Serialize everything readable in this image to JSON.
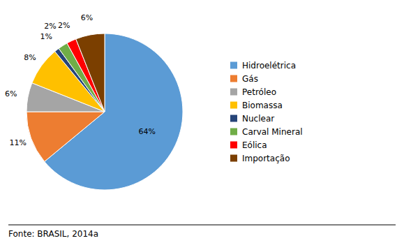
{
  "chart_data": {
    "type": "pie",
    "categories": [
      "Hidroelétrica",
      "Gás",
      "Petróleo",
      "Biomassa",
      "Nuclear",
      "Carval Mineral",
      "Eólica",
      "Importação"
    ],
    "values": [
      64,
      11,
      6,
      8,
      1,
      2,
      2,
      6
    ],
    "value_labels": [
      "64%",
      "11%",
      "6%",
      "8%",
      "1%",
      "2%",
      "2%",
      "6%"
    ],
    "colors": [
      "#5B9BD5",
      "#ED7D31",
      "#A5A5A5",
      "#FFC000",
      "#264478",
      "#70AD47",
      "#FF0000",
      "#7B3F00"
    ],
    "annotations": [
      "Fonte: BRASIL, 2014a"
    ],
    "data_labels": true,
    "legend": "right"
  }
}
